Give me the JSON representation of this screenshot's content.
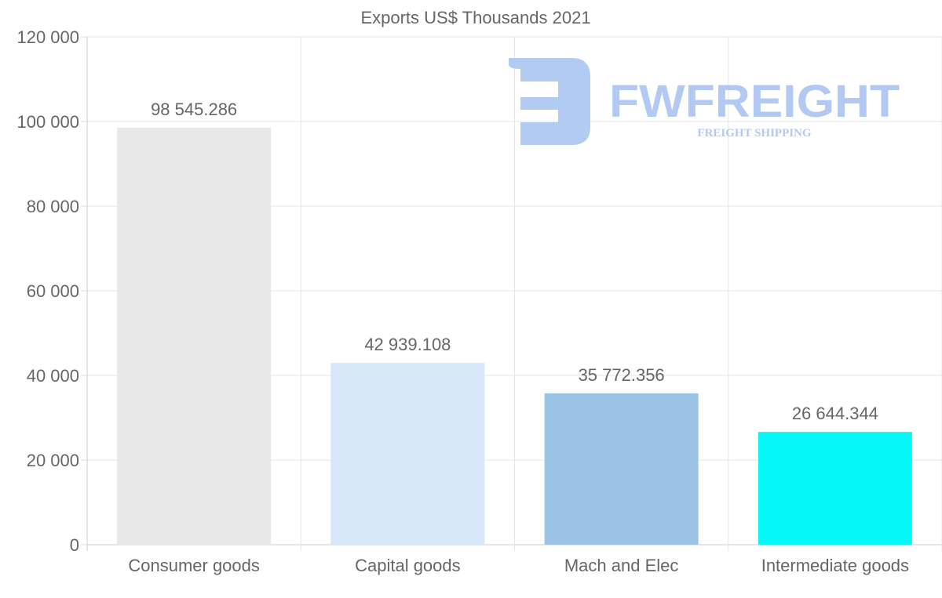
{
  "chart_data": {
    "type": "bar",
    "title": "Exports US$ Thousands 2021",
    "xlabel": "",
    "ylabel": "",
    "categories": [
      "Consumer goods",
      "Capital goods",
      "Mach and Elec",
      "Intermediate goods"
    ],
    "values": [
      98545.286,
      42939.108,
      35772.356,
      26644.344
    ],
    "data_labels": [
      "98 545.286",
      "42 939.108",
      "35 772.356",
      "26 644.344"
    ],
    "colors": [
      "#e8e8e8",
      "#d8e7f9",
      "#9bc3e6",
      "#05f8f8"
    ],
    "ylim": [
      0,
      120000
    ],
    "yticks": [
      0,
      20000,
      40000,
      60000,
      80000,
      100000,
      120000
    ],
    "ytick_labels": [
      "0",
      "20 000",
      "40 000",
      "60 000",
      "80 000",
      "100 000",
      "120 000"
    ],
    "grid": true,
    "legend": "none"
  },
  "watermark": {
    "brand": "FWFREIGHT",
    "tagline": "FREIGHT SHIPPING",
    "color": "#aac5f2"
  }
}
